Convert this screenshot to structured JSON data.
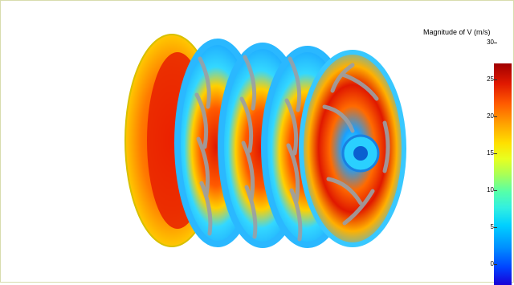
{
  "legend": {
    "title": "Magnitude of V (m/s)",
    "ticks": [
      "30",
      "25",
      "20",
      "15",
      "10",
      "5",
      "0"
    ]
  },
  "colors": {
    "max": "#a00000",
    "high": "#ff5a00",
    "mid": "#ffe000",
    "low_mid": "#33f0e0",
    "low": "#0044ff",
    "blade": "#9aa0a6"
  },
  "model": {
    "stage_count": 4
  }
}
